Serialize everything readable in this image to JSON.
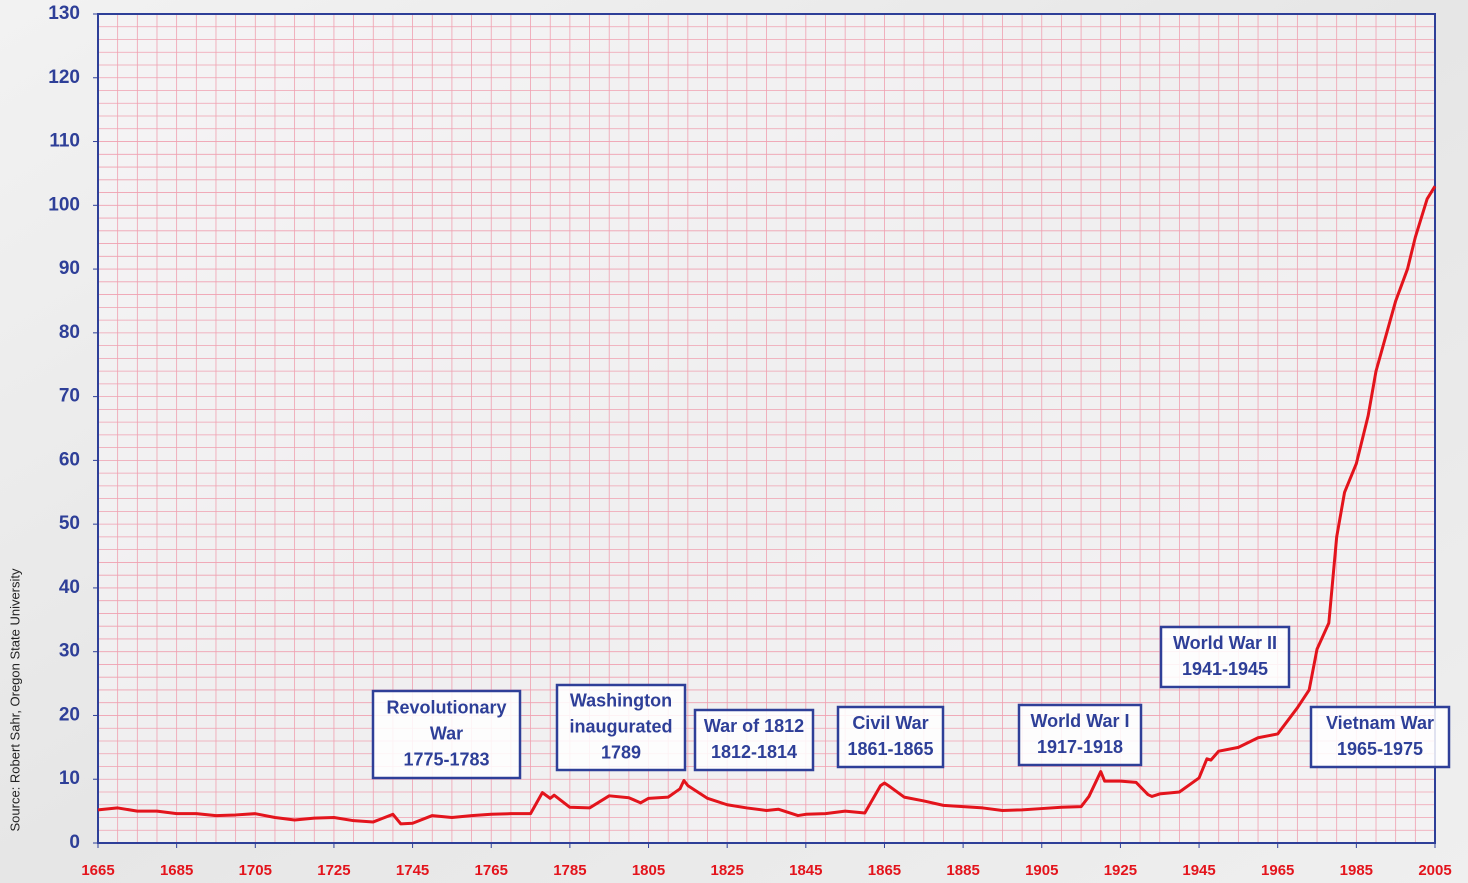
{
  "chart_data": {
    "type": "line",
    "source": "Source: Robert Sahr, Oregon State University",
    "x": [
      1665,
      1670,
      1675,
      1680,
      1685,
      1690,
      1695,
      1700,
      1705,
      1710,
      1715,
      1720,
      1725,
      1730,
      1735,
      1740,
      1742,
      1745,
      1750,
      1755,
      1760,
      1765,
      1770,
      1775,
      1778,
      1780,
      1781,
      1785,
      1790,
      1795,
      1800,
      1803,
      1805,
      1810,
      1813,
      1814,
      1815,
      1820,
      1825,
      1830,
      1835,
      1838,
      1843,
      1845,
      1850,
      1855,
      1860,
      1864,
      1865,
      1866,
      1870,
      1875,
      1880,
      1885,
      1890,
      1895,
      1900,
      1905,
      1910,
      1915,
      1917,
      1920,
      1921,
      1925,
      1929,
      1932,
      1933,
      1935,
      1940,
      1945,
      1947,
      1948,
      1950,
      1955,
      1960,
      1965,
      1970,
      1973,
      1975,
      1978,
      1980,
      1982,
      1985,
      1988,
      1990,
      1995,
      1998,
      2000,
      2003,
      2005
    ],
    "values": [
      5.2,
      5.5,
      5.0,
      5.0,
      4.6,
      4.6,
      4.3,
      4.4,
      4.6,
      4.0,
      3.6,
      3.9,
      4.0,
      3.5,
      3.3,
      4.5,
      3.0,
      3.1,
      4.3,
      4.0,
      4.3,
      4.5,
      4.6,
      4.6,
      7.9,
      7.0,
      7.5,
      5.6,
      5.5,
      7.4,
      7.1,
      6.3,
      7.0,
      7.2,
      8.5,
      9.8,
      9.0,
      7.0,
      6.0,
      5.5,
      5.1,
      5.3,
      4.3,
      4.5,
      4.6,
      5.0,
      4.7,
      9.0,
      9.4,
      9.0,
      7.2,
      6.6,
      5.9,
      5.7,
      5.5,
      5.1,
      5.2,
      5.4,
      5.6,
      5.7,
      7.3,
      11.2,
      9.7,
      9.7,
      9.5,
      7.6,
      7.3,
      7.7,
      8.0,
      10.2,
      13.2,
      13.0,
      14.4,
      15.0,
      16.5,
      17.1,
      21.2,
      24.0,
      30.4,
      34.5,
      48.0,
      55.0,
      59.5,
      67,
      74,
      85,
      90,
      95,
      101,
      103
    ],
    "color": "#e3141c",
    "xlim": [
      1665,
      2005
    ],
    "ylim": [
      0,
      130
    ],
    "xticks": [
      1665,
      1685,
      1705,
      1725,
      1745,
      1765,
      1785,
      1805,
      1825,
      1845,
      1865,
      1885,
      1905,
      1925,
      1945,
      1965,
      1985,
      2005
    ],
    "yticks": [
      0,
      10,
      20,
      30,
      40,
      50,
      60,
      70,
      80,
      90,
      100,
      110,
      120,
      130
    ],
    "grid": true,
    "grid_step": {
      "x": 5,
      "y": 2
    },
    "annotations": [
      {
        "lines": [
          "Revolutionary",
          "War",
          "1775-1783"
        ]
      },
      {
        "lines": [
          "Washington",
          "inaugurated",
          "1789"
        ]
      },
      {
        "lines": [
          "War of 1812",
          "1812-1814"
        ]
      },
      {
        "lines": [
          "Civil War",
          "1861-1865"
        ]
      },
      {
        "lines": [
          "World War I",
          "1917-1918"
        ]
      },
      {
        "lines": [
          "World War II",
          "1941-1945"
        ]
      },
      {
        "lines": [
          "Vietnam War",
          "1965-1975"
        ]
      }
    ]
  }
}
